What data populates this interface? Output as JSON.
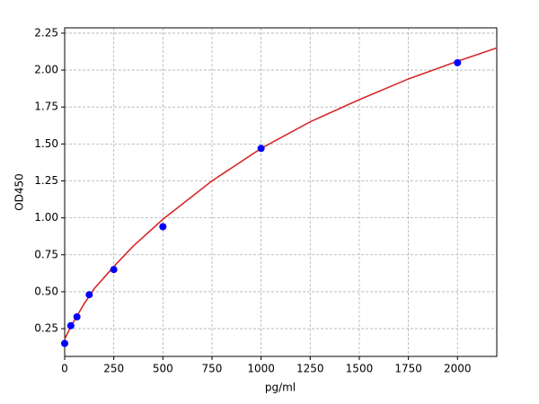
{
  "chart_data": {
    "type": "scatter",
    "xlabel": "pg/ml",
    "ylabel": "OD450",
    "xlim": [
      0,
      2200
    ],
    "ylim": [
      0.062,
      2.286
    ],
    "xticks": [
      0,
      250,
      500,
      750,
      1000,
      1250,
      1500,
      1750,
      2000
    ],
    "yticks": [
      0.25,
      {
        "value": 0.5,
        "label": "0.50"
      },
      0.75,
      {
        "value": 1,
        "label": "1.00"
      },
      1.25,
      {
        "value": 1.5,
        "label": "1.50"
      },
      1.75,
      {
        "value": 2,
        "label": "2.00"
      },
      2.25
    ],
    "grid": true,
    "series": [
      {
        "mode": "line",
        "color": "#d62728",
        "x": [
          0,
          30,
          60,
          100,
          150,
          250,
          350,
          500,
          750,
          1000,
          1250,
          1500,
          1750,
          2000,
          2200
        ],
        "values": [
          0.18,
          0.26,
          0.33,
          0.42,
          0.52,
          0.67,
          0.81,
          0.99,
          1.25,
          1.47,
          1.65,
          1.8,
          1.94,
          2.06,
          2.15
        ]
      },
      {
        "mode": "markers",
        "color": "#0000ff",
        "x": [
          0,
          31.25,
          62.5,
          125,
          250,
          500,
          1000,
          2000
        ],
        "values": [
          0.15,
          0.27,
          0.33,
          0.48,
          0.65,
          0.94,
          1.47,
          2.05
        ]
      }
    ]
  }
}
